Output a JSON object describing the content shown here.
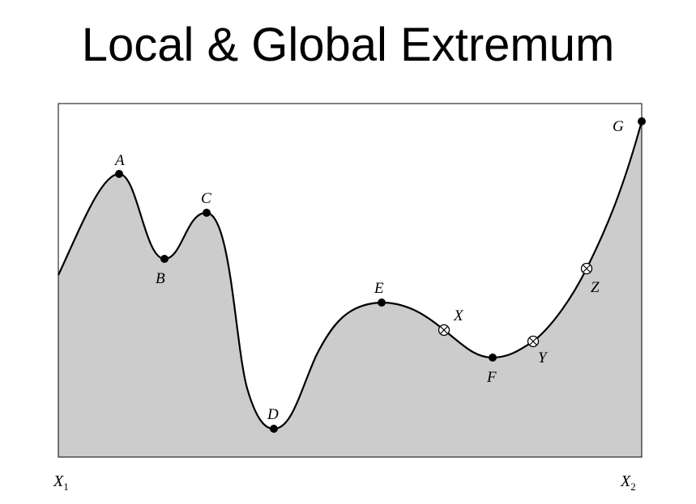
{
  "title": "Local & Global Extremum",
  "axis": {
    "x_left": "X",
    "x_left_sub": "1",
    "x_right": "X",
    "x_right_sub": "2"
  },
  "points": {
    "A": "A",
    "B": "B",
    "C": "C",
    "D": "D",
    "E": "E",
    "F": "F",
    "G": "G"
  },
  "markers": {
    "X": "X",
    "Y": "Y",
    "Z": "Z"
  },
  "colors": {
    "fill": "#cccccc",
    "stroke": "#000000"
  }
}
